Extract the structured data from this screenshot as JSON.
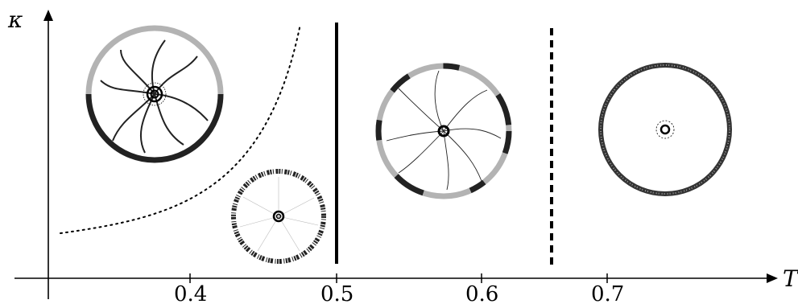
{
  "axes": {
    "x_label": "T",
    "y_label": "κ",
    "x_ticks": [
      "0.4",
      "0.5",
      "0.6",
      "0.7"
    ],
    "x_tick_values": [
      0.4,
      0.5,
      0.6,
      0.7
    ]
  },
  "boundaries": [
    {
      "name": "solid-boundary",
      "style": "solid",
      "x": 0.5
    },
    {
      "name": "dashed-boundary",
      "style": "dashed",
      "x": 0.65
    }
  ],
  "colors": {
    "dark_arc": "#222222",
    "light_arc": "#b3b3b3",
    "line": "#000000"
  },
  "insets": [
    {
      "name": "inset-segmented-ring",
      "ring": "two-half-arcs"
    },
    {
      "name": "inset-dense-ring",
      "ring": "barcode"
    },
    {
      "name": "inset-petal-ring",
      "ring": "alternating-arcs"
    },
    {
      "name": "inset-noisy-ring",
      "ring": "speckled"
    }
  ]
}
